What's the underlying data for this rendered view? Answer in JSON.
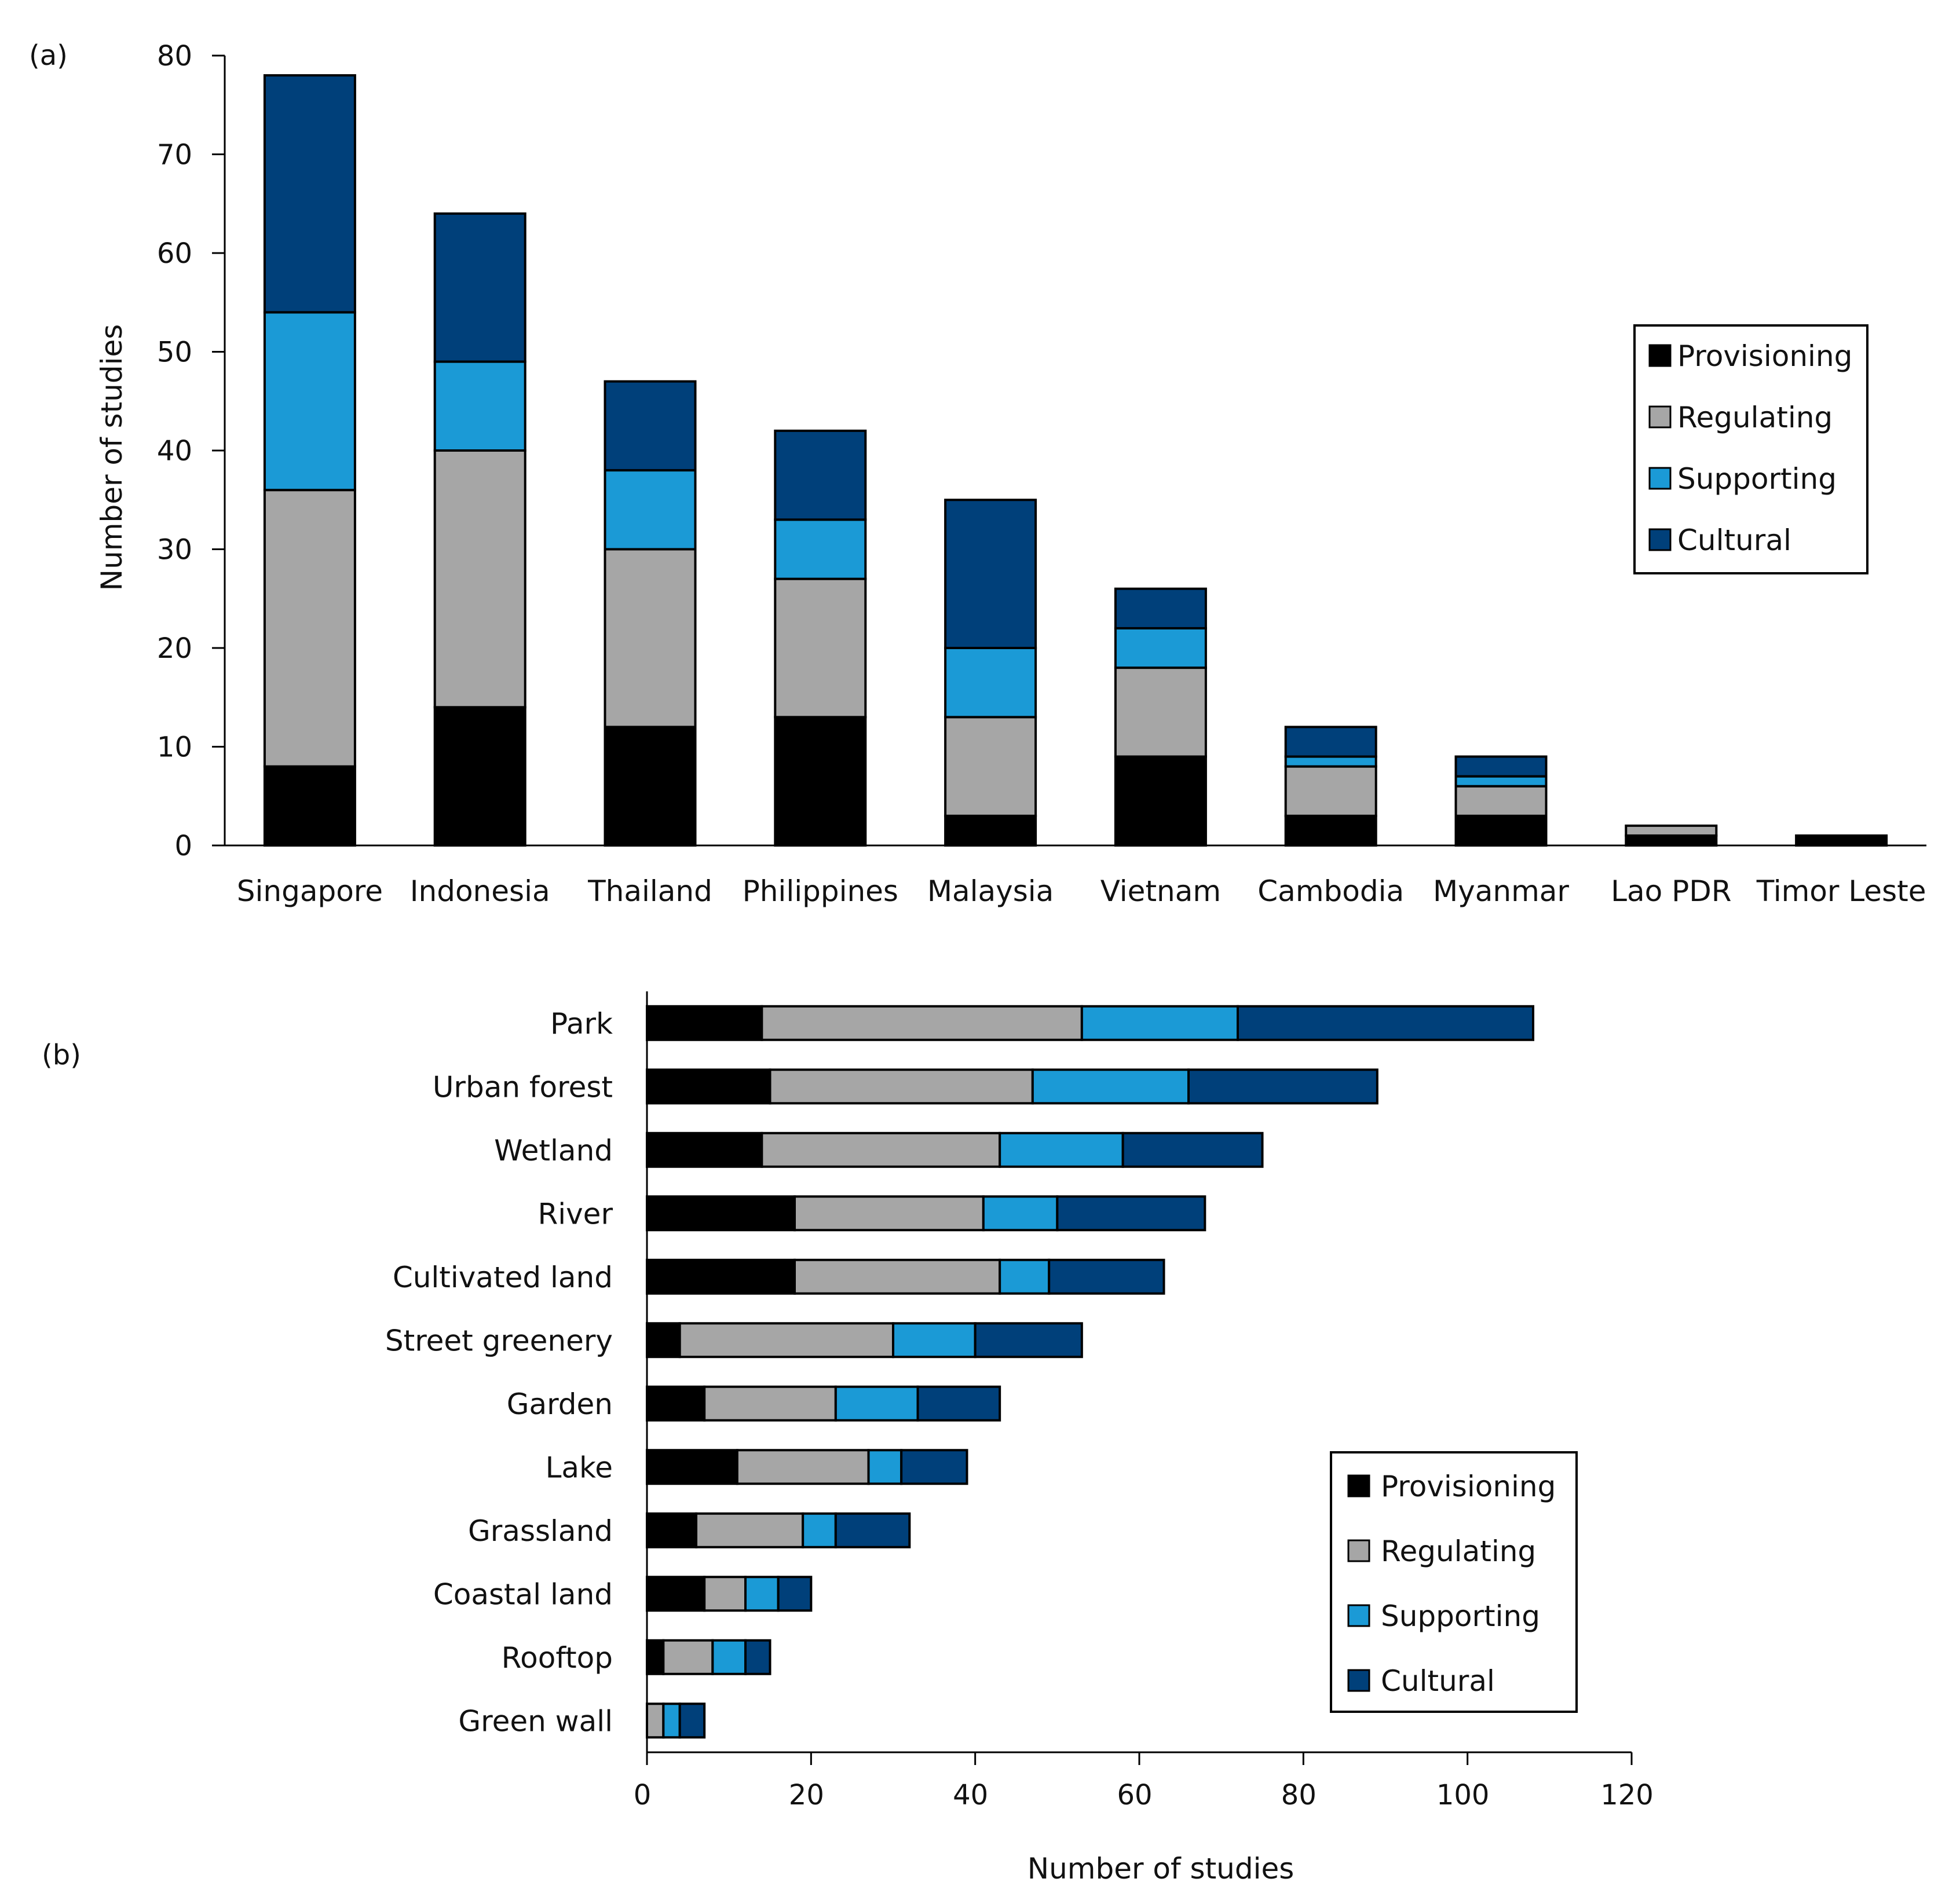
{
  "colors": {
    "Provisioning": "#000000",
    "Regulating": "#a6a6a6",
    "Supporting": "#1b9ad6",
    "Cultural": "#00407a"
  },
  "chart_data": [
    {
      "type": "bar",
      "orientation": "vertical",
      "stacked": true,
      "panel_label": "(a)",
      "title": "",
      "xlabel": "",
      "ylabel": "Number of studies",
      "ylim": [
        0,
        80
      ],
      "yticks": [
        0,
        10,
        20,
        30,
        40,
        50,
        60,
        70,
        80
      ],
      "legend_position": "right",
      "categories": [
        "Singapore",
        "Indonesia",
        "Thailand",
        "Philippines",
        "Malaysia",
        "Vietnam",
        "Cambodia",
        "Myanmar",
        "Lao PDR",
        "Timor Leste"
      ],
      "series": [
        {
          "name": "Provisioning",
          "values": [
            8,
            14,
            12,
            13,
            3,
            9,
            3,
            3,
            1,
            1
          ]
        },
        {
          "name": "Regulating",
          "values": [
            28,
            26,
            18,
            14,
            10,
            9,
            5,
            3,
            1,
            0
          ]
        },
        {
          "name": "Supporting",
          "values": [
            18,
            9,
            8,
            6,
            7,
            4,
            1,
            1,
            0,
            0
          ]
        },
        {
          "name": "Cultural",
          "values": [
            24,
            15,
            9,
            9,
            15,
            4,
            3,
            2,
            0,
            0
          ]
        }
      ]
    },
    {
      "type": "bar",
      "orientation": "horizontal",
      "stacked": true,
      "panel_label": "(b)",
      "title": "",
      "xlabel": "Number of studies",
      "ylabel": "",
      "xlim": [
        0,
        120
      ],
      "xticks": [
        0,
        20,
        40,
        60,
        80,
        100,
        120
      ],
      "legend_position": "bottom-right",
      "categories": [
        "Park",
        "Urban forest",
        "Wetland",
        "River",
        "Cultivated land",
        "Street greenery",
        "Garden",
        "Lake",
        "Grassland",
        "Coastal land",
        "Rooftop",
        "Green wall"
      ],
      "series": [
        {
          "name": "Provisioning",
          "values": [
            14,
            15,
            14,
            18,
            18,
            4,
            7,
            11,
            6,
            7,
            2,
            0
          ]
        },
        {
          "name": "Regulating",
          "values": [
            39,
            32,
            29,
            23,
            25,
            26,
            16,
            16,
            13,
            5,
            6,
            2
          ]
        },
        {
          "name": "Supporting",
          "values": [
            19,
            19,
            15,
            9,
            6,
            10,
            10,
            4,
            4,
            4,
            4,
            2
          ]
        },
        {
          "name": "Cultural",
          "values": [
            36,
            23,
            17,
            18,
            14,
            13,
            10,
            8,
            9,
            4,
            3,
            3
          ]
        }
      ]
    }
  ]
}
